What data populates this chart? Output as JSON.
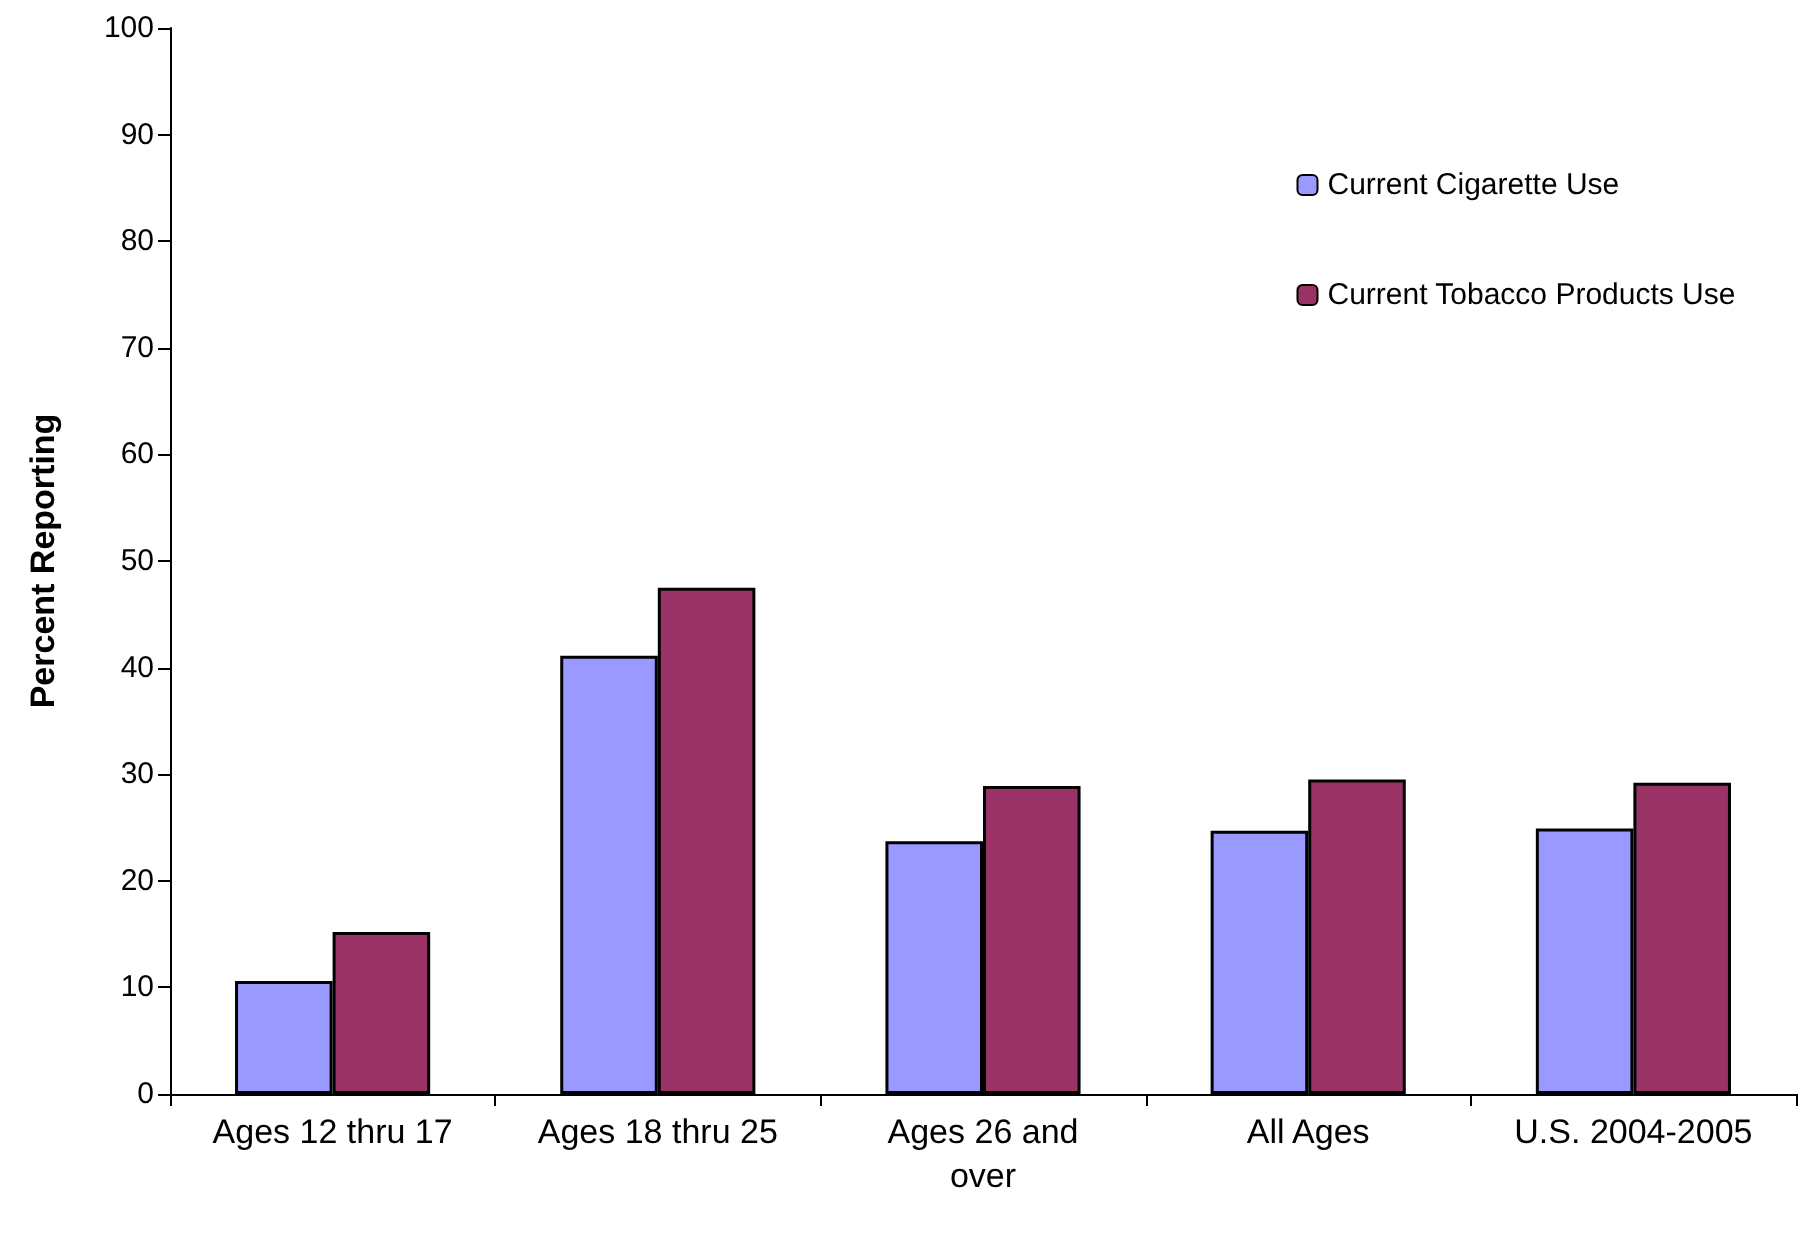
{
  "chart_data": {
    "type": "bar",
    "ylabel": "Percent Reporting",
    "categories": [
      "Ages 12 thru 17",
      "Ages 18 thru 25",
      "Ages 26 and\nover",
      "All Ages",
      "U.S. 2004-2005"
    ],
    "series": [
      {
        "name": "Current Cigarette Use",
        "color": "#9999ff",
        "values": [
          10.6,
          41.1,
          23.7,
          24.7,
          24.9
        ]
      },
      {
        "name": "Current Tobacco Products Use",
        "color": "#993366",
        "values": [
          15.2,
          47.5,
          28.9,
          29.5,
          29.2
        ]
      }
    ],
    "ylim": [
      0,
      100
    ],
    "yticks": [
      0,
      10,
      20,
      30,
      40,
      50,
      60,
      70,
      80,
      90,
      100
    ],
    "grid": false,
    "legend": "top right"
  }
}
